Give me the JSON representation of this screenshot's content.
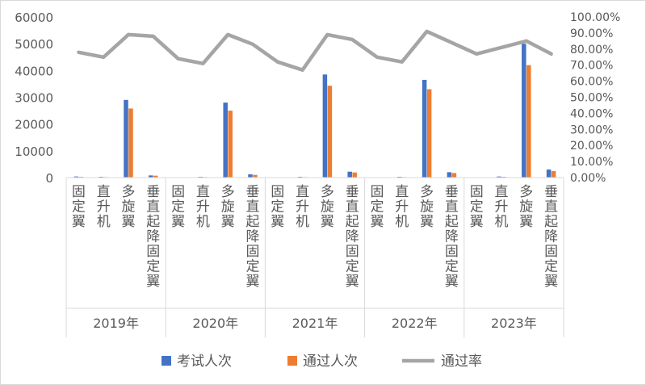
{
  "chart_data": {
    "type": "bar",
    "title": "",
    "group_labels": [
      "2019年",
      "2020年",
      "2021年",
      "2022年",
      "2023年"
    ],
    "categories_per_group": [
      "固定翼",
      "直升机",
      "多旋翼",
      "垂直起降固定翼"
    ],
    "y_left": {
      "min": 0,
      "max": 60000,
      "ticks": [
        "0",
        "10000",
        "20000",
        "30000",
        "40000",
        "50000",
        "60000"
      ]
    },
    "y_right": {
      "min": 0,
      "max": 1.0,
      "ticks": [
        "0.00%",
        "10.00%",
        "20.00%",
        "30.00%",
        "40.00%",
        "50.00%",
        "60.00%",
        "70.00%",
        "80.00%",
        "90.00%",
        "100.00%"
      ]
    },
    "series": [
      {
        "name": "考试人次",
        "kind": "bar",
        "axis": "left",
        "color": "#4472C4",
        "values": [
          400,
          300,
          29000,
          800,
          100,
          300,
          28000,
          1200,
          100,
          300,
          38500,
          2200,
          100,
          300,
          36500,
          2000,
          100,
          400,
          50000,
          3000
        ]
      },
      {
        "name": "通过人次",
        "kind": "bar",
        "axis": "left",
        "color": "#ED7D31",
        "values": [
          300,
          200,
          25800,
          700,
          80,
          200,
          25000,
          1000,
          80,
          200,
          34300,
          1900,
          80,
          200,
          33000,
          1700,
          80,
          300,
          42000,
          2400
        ]
      },
      {
        "name": "通过率",
        "kind": "line",
        "axis": "right",
        "color": "#A5A5A5",
        "values": [
          0.78,
          0.75,
          0.89,
          0.88,
          0.74,
          0.71,
          0.89,
          0.83,
          0.72,
          0.67,
          0.89,
          0.86,
          0.75,
          0.72,
          0.91,
          0.84,
          0.77,
          0.81,
          0.85,
          0.77
        ]
      }
    ],
    "legend": {
      "position": "bottom"
    },
    "grid": false
  }
}
